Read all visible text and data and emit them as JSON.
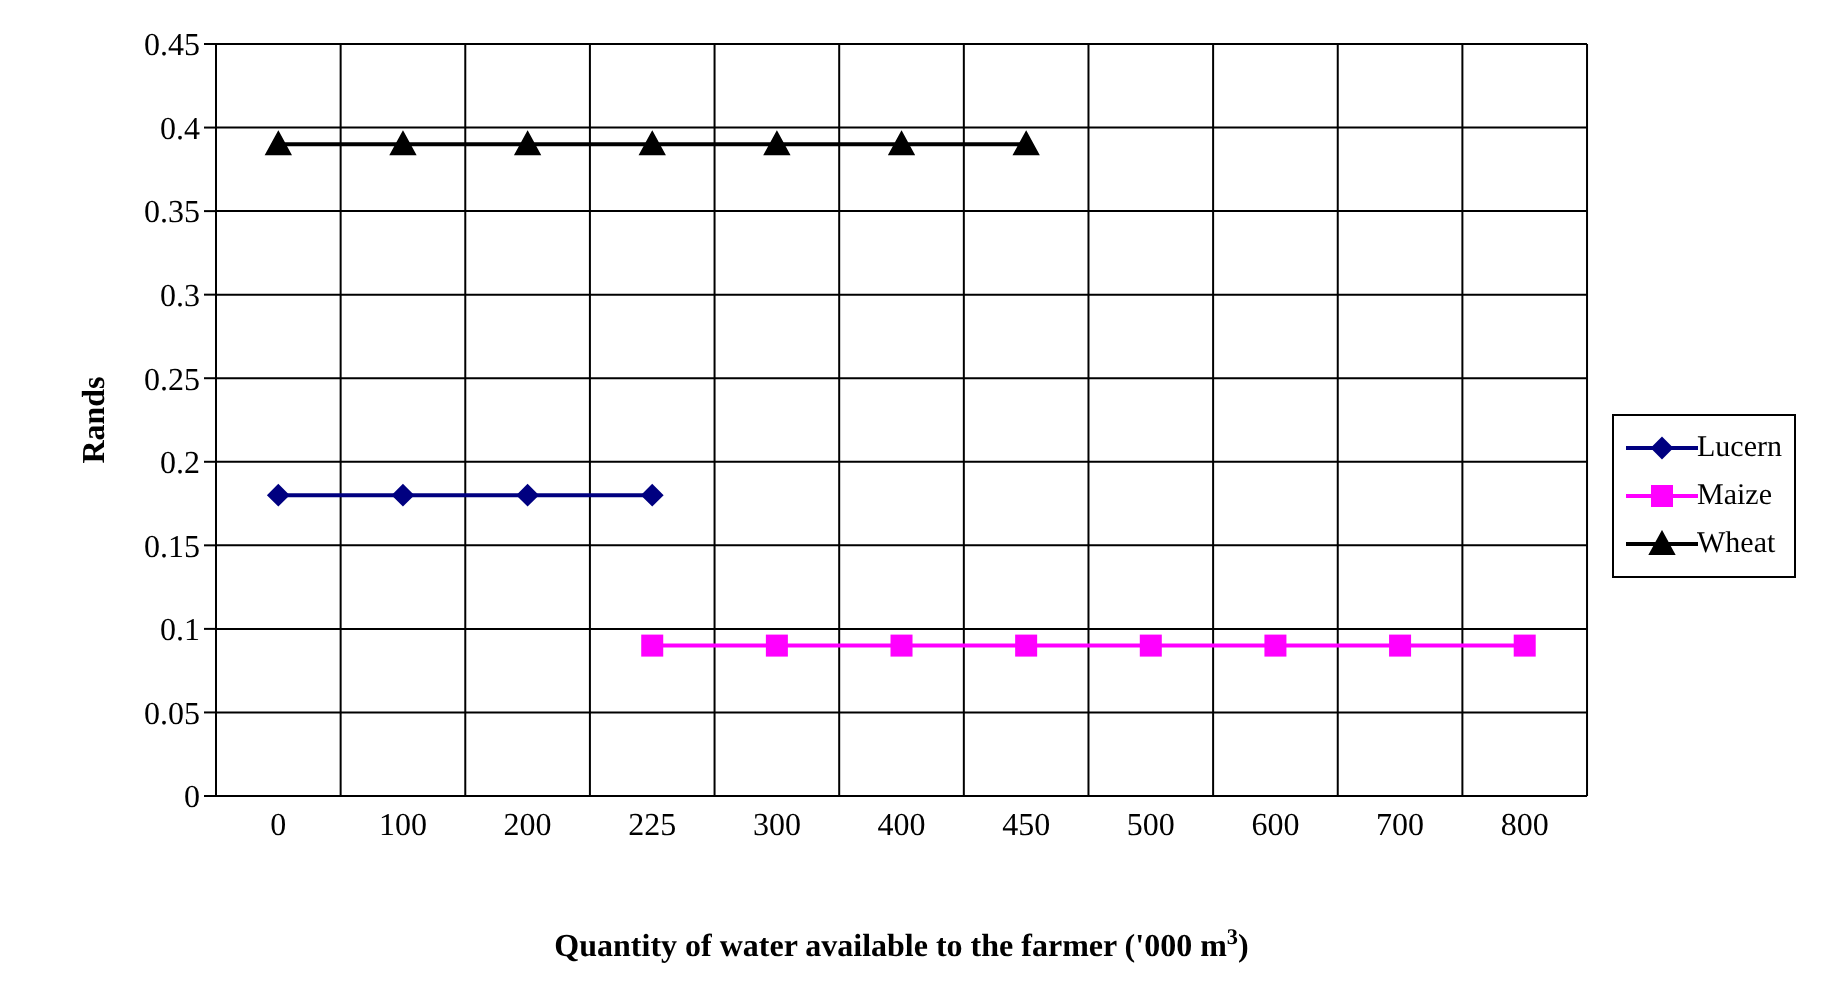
{
  "chart_data": {
    "type": "line",
    "xlabel": "Quantity of water available to the farmer ('000 m$^{3}$)",
    "ylabel": "Rands",
    "categories": [
      "0",
      "100",
      "200",
      "225",
      "300",
      "400",
      "450",
      "500",
      "600",
      "700",
      "800"
    ],
    "series": [
      {
        "name": "Lucern",
        "color": "#000080",
        "marker": "diamond",
        "values": [
          0.18,
          0.18,
          0.18,
          0.18,
          null,
          null,
          null,
          null,
          null,
          null,
          null
        ]
      },
      {
        "name": "Maize",
        "color": "#ff00ff",
        "marker": "square",
        "values": [
          null,
          null,
          null,
          0.09,
          0.09,
          0.09,
          0.09,
          0.09,
          0.09,
          0.09,
          0.09
        ]
      },
      {
        "name": "Wheat",
        "color": "#000000",
        "marker": "triangle",
        "values": [
          0.39,
          0.39,
          0.39,
          0.39,
          0.39,
          0.39,
          0.39,
          null,
          null,
          null,
          null
        ]
      }
    ],
    "ylim": [
      0,
      0.45
    ],
    "yticks": [
      0,
      0.05,
      0.1,
      0.15,
      0.2,
      0.25,
      0.3,
      0.35,
      0.4,
      0.45
    ],
    "grid": true,
    "legend": "right",
    "line_style": "solid"
  }
}
